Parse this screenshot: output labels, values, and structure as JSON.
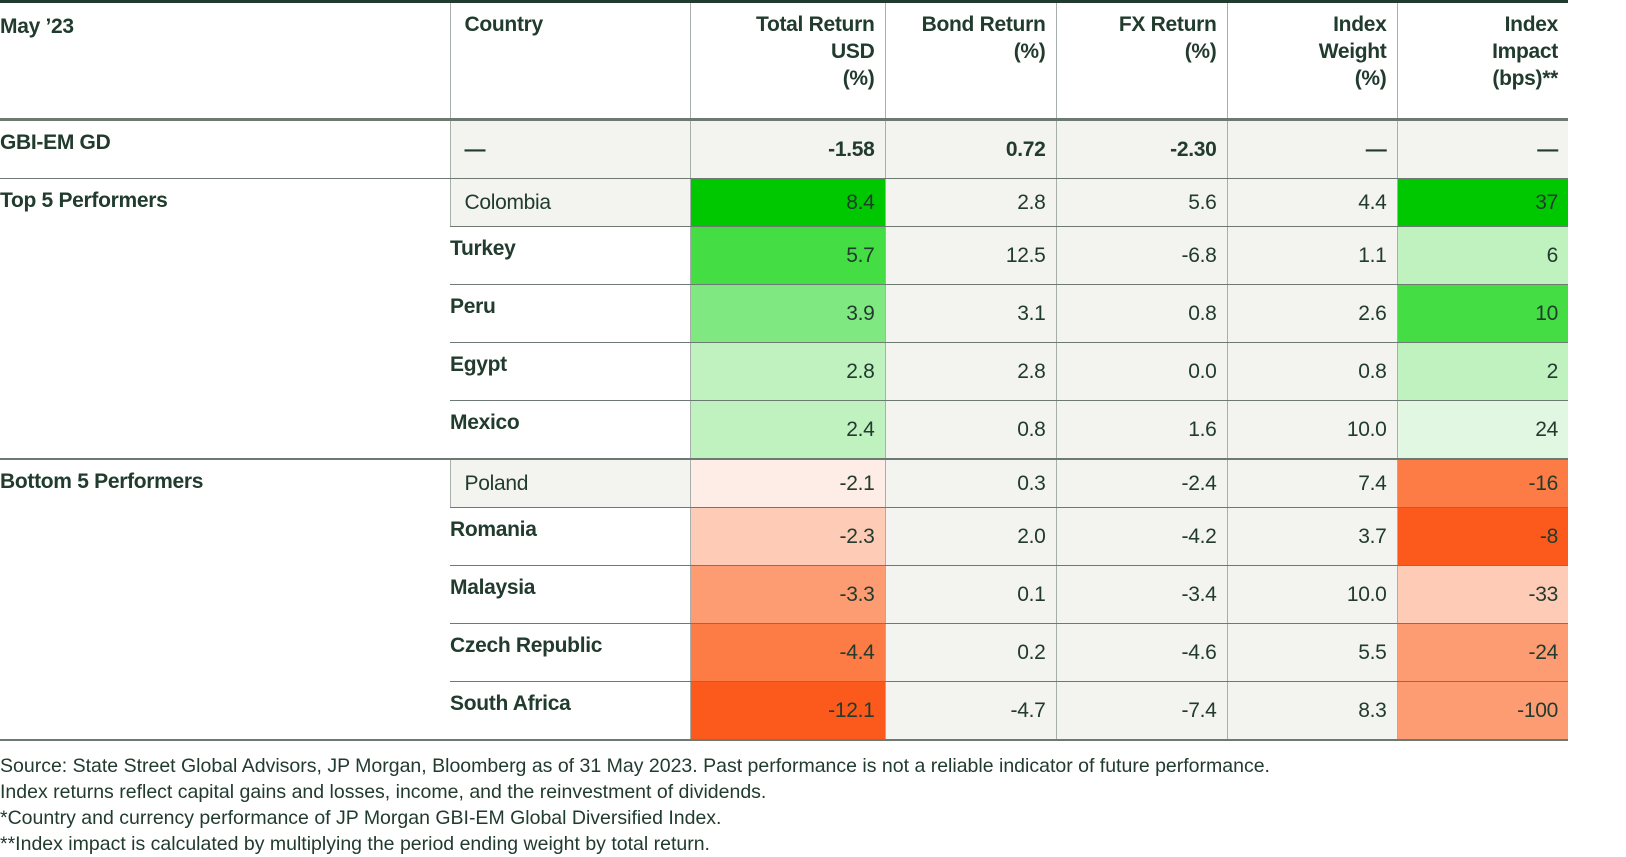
{
  "headers": [
    "May ’23",
    "Country",
    "Total Return USD (%)",
    "Bond Return (%)",
    "FX Return (%)",
    "Index Weight (%)",
    "Index Impact (bps)**"
  ],
  "header_lines": [
    [
      "May ’23"
    ],
    [
      "Country"
    ],
    [
      "Total Return",
      "USD",
      "(%)"
    ],
    [
      "Bond Return",
      "(%)"
    ],
    [
      "FX Return",
      "(%)"
    ],
    [
      "Index",
      "Weight",
      "(%)"
    ],
    [
      "Index",
      "Impact",
      "(bps)**"
    ]
  ],
  "summary": {
    "label": "GBI-EM GD",
    "country": "—",
    "total": "-1.58",
    "bond": "0.72",
    "fx": "-2.30",
    "weight": "—",
    "impact": "—"
  },
  "groups": [
    {
      "label": "Top 5 Performers",
      "rows": [
        {
          "country": "Colombia",
          "total": "8.4",
          "bond": "2.8",
          "fx": "5.6",
          "weight": "4.4",
          "impact": "37",
          "total_color": "#00c800",
          "impact_color": "#00c800"
        },
        {
          "country": "Turkey",
          "total": "5.7",
          "bond": "12.5",
          "fx": "-6.8",
          "weight": "1.1",
          "impact": "6",
          "total_color": "#44dd44",
          "impact_color": "#c0f2c0"
        },
        {
          "country": "Peru",
          "total": "3.9",
          "bond": "3.1",
          "fx": "0.8",
          "weight": "2.6",
          "impact": "10",
          "total_color": "#80e880",
          "impact_color": "#44dd44"
        },
        {
          "country": "Egypt",
          "total": "2.8",
          "bond": "2.8",
          "fx": "0.0",
          "weight": "0.8",
          "impact": "2",
          "total_color": "#c0f2c0",
          "impact_color": "#c0f2c0"
        },
        {
          "country": "Mexico",
          "total": "2.4",
          "bond": "0.8",
          "fx": "1.6",
          "weight": "10.0",
          "impact": "24",
          "total_color": "#c0f2c0",
          "impact_color": "#e2f7e2"
        }
      ]
    },
    {
      "label": "Bottom 5 Performers",
      "rows": [
        {
          "country": "Poland",
          "total": "-2.1",
          "bond": "0.3",
          "fx": "-2.4",
          "weight": "7.4",
          "impact": "-16",
          "total_color": "#feede6",
          "impact_color": "#fd7b45"
        },
        {
          "country": "Romania",
          "total": "-2.3",
          "bond": "2.0",
          "fx": "-4.2",
          "weight": "3.7",
          "impact": "-8",
          "total_color": "#fecbb6",
          "impact_color": "#fc5a1c"
        },
        {
          "country": "Malaysia",
          "total": "-3.3",
          "bond": "0.1",
          "fx": "-3.4",
          "weight": "10.0",
          "impact": "-33",
          "total_color": "#fd9c73",
          "impact_color": "#fecbb6"
        },
        {
          "country": "Czech Republic",
          "total": "-4.4",
          "bond": "0.2",
          "fx": "-4.6",
          "weight": "5.5",
          "impact": "-24",
          "total_color": "#fd7b45",
          "impact_color": "#fd9c73"
        },
        {
          "country": "South Africa",
          "total": "-12.1",
          "bond": "-4.7",
          "fx": "-7.4",
          "weight": "8.3",
          "impact": "-100",
          "total_color": "#fc5a1c",
          "impact_color": "#fd9c73"
        }
      ]
    }
  ],
  "footer": [
    "Source: State Street Global Advisors, JP Morgan, Bloomberg as of 31 May 2023. Past performance is not a reliable indicator of future performance.",
    "Index returns reflect capital gains and losses, income, and the reinvestment of dividends.",
    "*Country and currency performance of JP Morgan GBI-EM Global Diversified Index.",
    "**Index impact is calculated by multiplying the period ending weight by total return."
  ]
}
